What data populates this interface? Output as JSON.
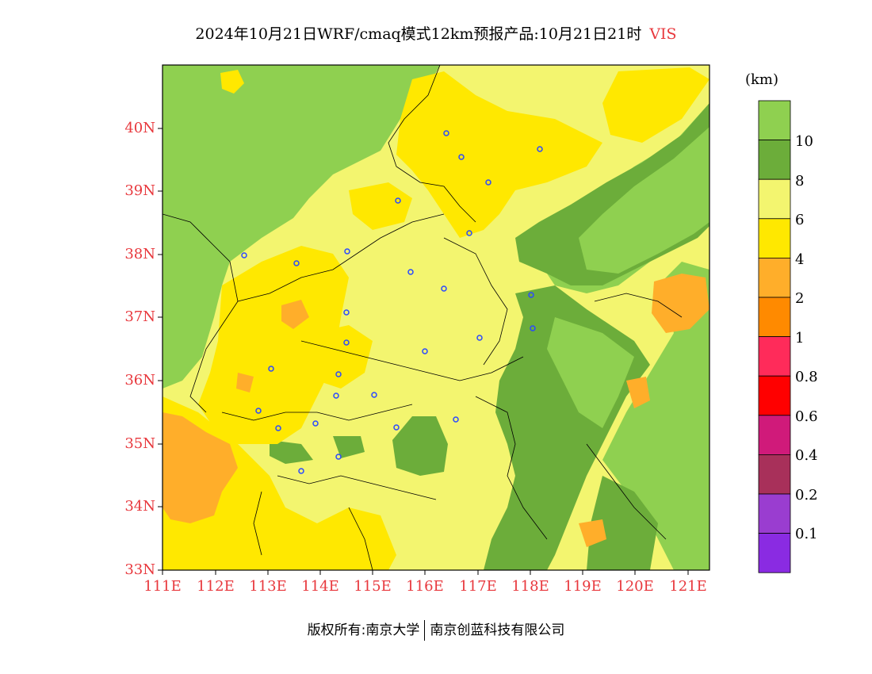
{
  "title": {
    "main": "2024年10月21日WRF/cmaq模式12km预报产品:10月21日21时",
    "variable": "VIS"
  },
  "map": {
    "lon_range": [
      111,
      121.4
    ],
    "lat_range": [
      33,
      41
    ],
    "lat_ticks": [
      "40N",
      "39N",
      "38N",
      "37N",
      "36N",
      "35N",
      "34N",
      "33N"
    ],
    "lon_ticks": [
      "111E",
      "112E",
      "113E",
      "114E",
      "115E",
      "116E",
      "117E",
      "118E",
      "119E",
      "120E",
      "121E"
    ]
  },
  "colorbar": {
    "unit": "(km)",
    "levels": [
      "10",
      "8",
      "6",
      "4",
      "2",
      "1",
      "0.8",
      "0.6",
      "0.4",
      "0.2",
      "0.1"
    ],
    "colors": [
      "#8fd050",
      "#6cad3a",
      "#f3f56f",
      "#ffe800",
      "#ffae2a",
      "#ff8a00",
      "#ff2b5a",
      "#ff0000",
      "#d01a7a",
      "#a8305a",
      "#9a3dd0",
      "#8a2be2"
    ]
  },
  "footer": {
    "left": "版权所有:南京大学",
    "right": "南京创蓝科技有限公司"
  }
}
